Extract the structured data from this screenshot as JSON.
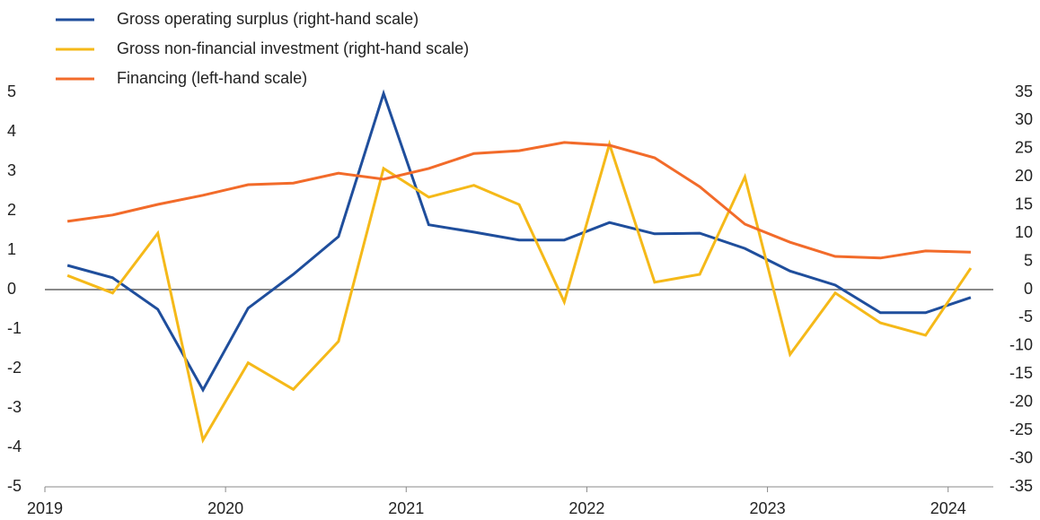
{
  "chart_data": {
    "type": "line",
    "x": [
      2019.125,
      2019.375,
      2019.625,
      2019.875,
      2020.125,
      2020.375,
      2020.625,
      2020.875,
      2021.125,
      2021.375,
      2021.625,
      2021.875,
      2022.125,
      2022.375,
      2022.625,
      2022.875,
      2023.125,
      2023.375,
      2023.625,
      2023.875,
      2024.125
    ],
    "xlim": [
      2019,
      2024.25
    ],
    "xticks": [
      2019,
      2020,
      2021,
      2022,
      2023,
      2024
    ],
    "ylim": [
      -5,
      5
    ],
    "yticks": [
      -5,
      -4,
      -3,
      -2,
      -1,
      0,
      1,
      2,
      3,
      4,
      5
    ],
    "y2lim": [
      -35,
      35
    ],
    "y2ticks": [
      -35,
      -30,
      -25,
      -20,
      -15,
      -10,
      -5,
      0,
      5,
      10,
      15,
      20,
      25,
      30,
      35
    ],
    "legend": "top-left",
    "series": [
      {
        "name": "Gross operating surplus (right-hand scale)",
        "color": "#1f4e9c",
        "axis": "y2",
        "values": [
          4.3,
          2.1,
          -3.5,
          -17.8,
          -3.3,
          2.7,
          9.4,
          34.8,
          11.5,
          10.2,
          8.8,
          8.8,
          11.9,
          9.9,
          10.0,
          7.3,
          3.3,
          0.8,
          -4.1,
          -4.1,
          -1.4
        ]
      },
      {
        "name": "Gross non-financial investment (right-hand scale)",
        "color": "#f5b919",
        "axis": "y2",
        "values": [
          2.5,
          -0.6,
          10.0,
          -26.7,
          -13.0,
          -17.7,
          -9.2,
          21.5,
          16.4,
          18.5,
          15.1,
          -2.2,
          25.8,
          1.3,
          2.7,
          20.0,
          -11.5,
          -0.6,
          -5.9,
          -8.1,
          3.8
        ]
      },
      {
        "name": "Financing (left-hand scale)",
        "color": "#f26b2a",
        "axis": "y",
        "values": [
          1.73,
          1.89,
          2.16,
          2.39,
          2.66,
          2.7,
          2.95,
          2.8,
          3.07,
          3.45,
          3.52,
          3.73,
          3.66,
          3.34,
          2.61,
          1.66,
          1.2,
          0.84,
          0.8,
          0.98,
          0.95
        ]
      }
    ]
  }
}
